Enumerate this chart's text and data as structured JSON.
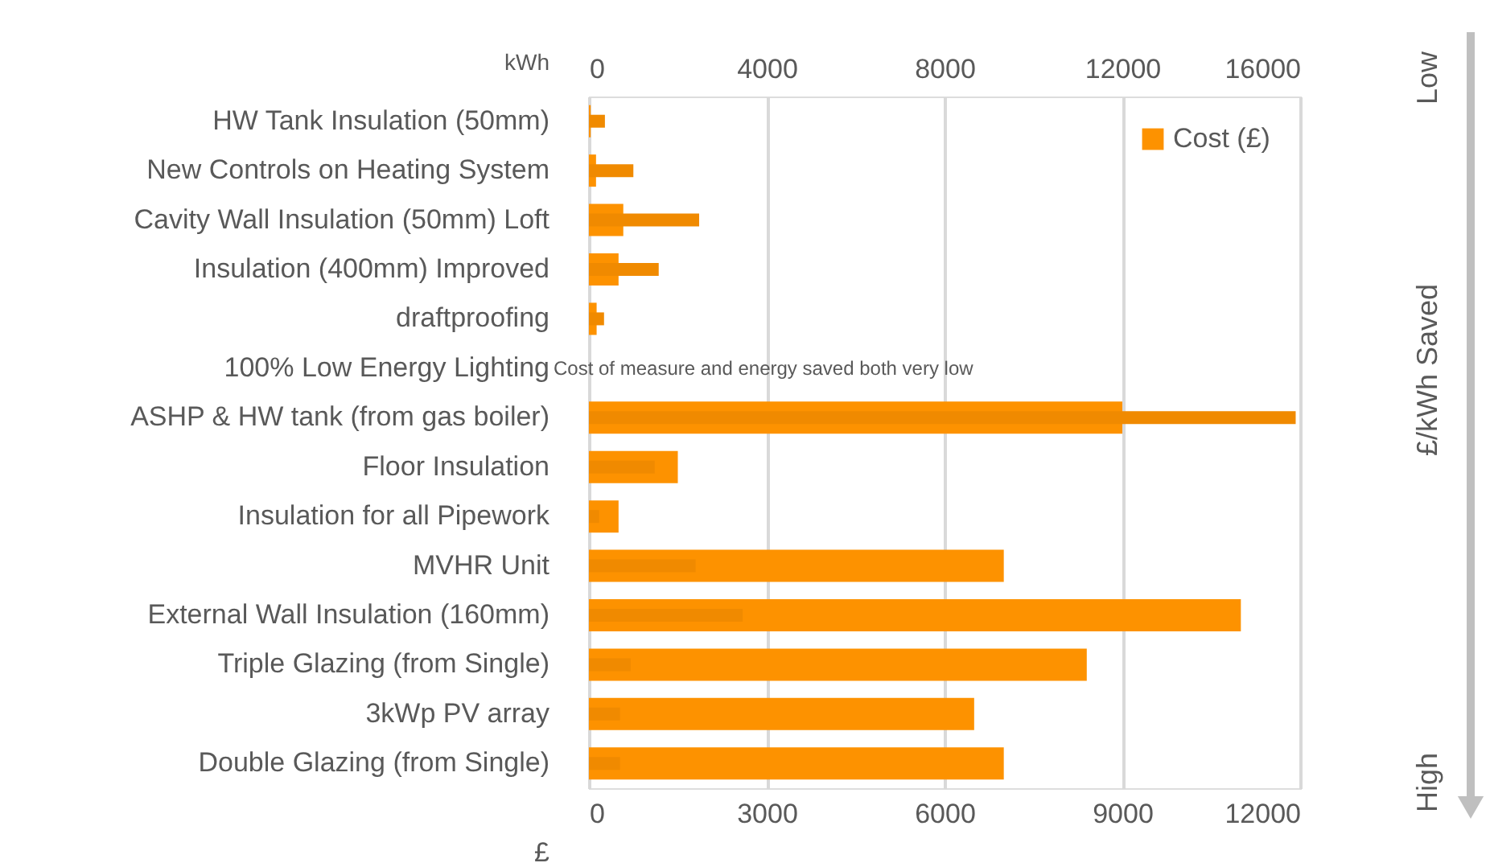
{
  "chart_data": {
    "type": "bar",
    "orientation": "horizontal",
    "categories": [
      "HW Tank Insulation (50mm)",
      "New Controls on Heating System",
      "Cavity Wall Insulation (50mm) Loft",
      "Insulation (400mm) Improved",
      "draftproofing",
      "100% Low Energy Lighting",
      "ASHP & HW tank (from gas boiler)",
      "Floor Insulation",
      "Insulation for all Pipework",
      "MVHR Unit",
      "External Wall Insulation (160mm)",
      "Triple Glazing (from Single)",
      "3kWp PV array",
      "Double Glazing (from Single)"
    ],
    "series": [
      {
        "name": "Cost (£)",
        "color": "#fd9200",
        "values": [
          30,
          120,
          580,
          500,
          130,
          null,
          9000,
          1500,
          500,
          7000,
          11000,
          8400,
          6500,
          7000
        ]
      },
      {
        "color": "#f08a00",
        "axis": "x2",
        "values": [
          360,
          1000,
          2480,
          1570,
          340,
          null,
          15900,
          1480,
          230,
          2400,
          3460,
          940,
          700,
          700
        ]
      }
    ],
    "xlabel": "£",
    "xlim": [
      0,
      12000
    ],
    "xticks": [
      0,
      3000,
      6000,
      9000,
      12000
    ],
    "x2label": "kWh",
    "x2lim": [
      0,
      16000
    ],
    "x2ticks": [
      0,
      4000,
      8000,
      12000,
      16000
    ],
    "grid": "x",
    "legend": "top right",
    "annotations": [
      "Cost of measure and energy saved both very low",
      "Low",
      "£/kWh Saved",
      "High"
    ]
  }
}
